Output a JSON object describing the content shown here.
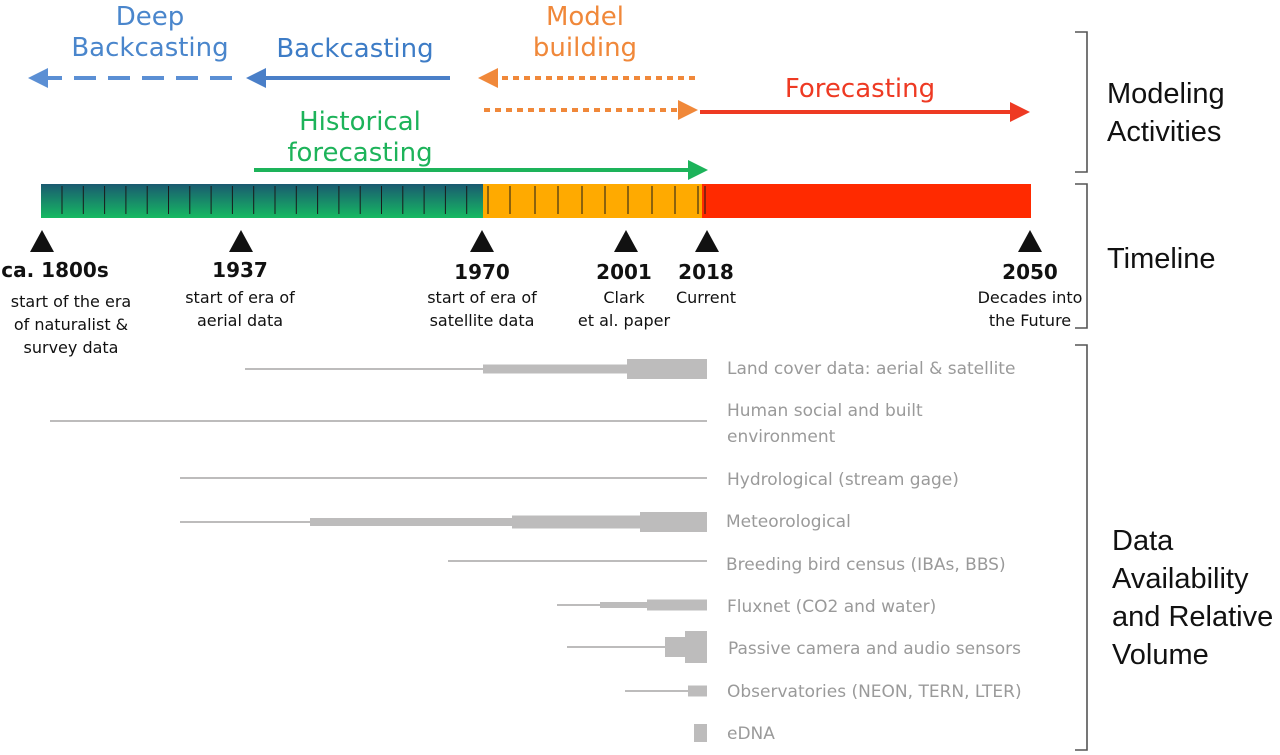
{
  "activities": {
    "deep_backcasting": "Deep\nBackcasting",
    "backcasting": "Backcasting",
    "model_building": "Model\nbuilding",
    "forecasting": "Forecasting",
    "historical_forecasting": "Historical\nforecasting"
  },
  "sections": {
    "modeling": "Modeling\nActivities",
    "timeline": "Timeline",
    "data": "Data\nAvailability\nand Relative\nVolume"
  },
  "milestones": [
    {
      "year": "ca. 1800s",
      "desc": "start of the era\nof naturalist &\nsurvey data"
    },
    {
      "year": "1937",
      "desc": "start of era of\naerial data"
    },
    {
      "year": "1970",
      "desc": "start of era of\nsatellite data"
    },
    {
      "year": "2001",
      "desc": "Clark\net al. paper"
    },
    {
      "year": "2018",
      "desc": "Current"
    },
    {
      "year": "2050",
      "desc": "Decades into\nthe Future"
    }
  ],
  "datasets": [
    {
      "label": "Land cover data: aerial & satellite"
    },
    {
      "label": "Human social and built\nenvironment"
    },
    {
      "label": "Hydrological (stream gage)"
    },
    {
      "label": "Meteorological"
    },
    {
      "label": "Breeding bird census (IBAs, BBS)"
    },
    {
      "label": "Fluxnet (CO2 and water)"
    },
    {
      "label": "Passive camera and audio sensors"
    },
    {
      "label": "Observatories (NEON, TERN, LTER)"
    },
    {
      "label": "eDNA"
    }
  ],
  "colors": {
    "deep_backcasting": "#5b8fd4",
    "backcasting": "#4a7fc8",
    "model_building": "#f0883a",
    "forecasting": "#ee3a23",
    "historical_forecasting": "#1db35a",
    "bar_past_top": "#1a5c6e",
    "bar_past_bottom": "#17b764",
    "bar_present": "#ffaa00",
    "bar_future": "#ff2a00",
    "data_bars": "#bdbcbc",
    "brackets": "#555555"
  }
}
